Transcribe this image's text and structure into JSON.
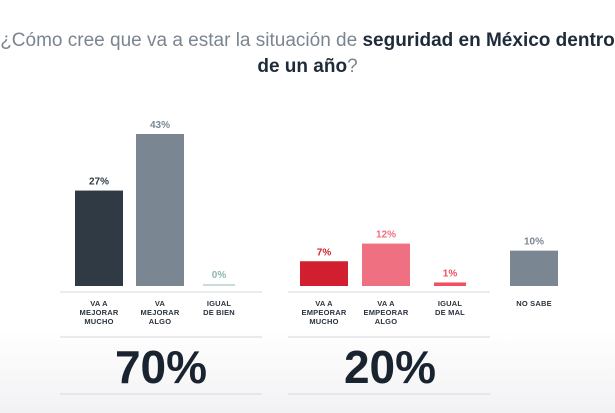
{
  "title": {
    "pre": "¿Cómo cree que va a estar la situación de ",
    "bold": "seguridad en México dentro de un año",
    "post": "?"
  },
  "colors": {
    "dark": "#2f3a44",
    "gray": "#7a8793",
    "light_teal": "#c9dcdb",
    "red": "#d21f2f",
    "pink": "#ef7080",
    "light_red": "#f05060",
    "neutral": "#7a8793"
  },
  "chart_data": {
    "type": "bar",
    "title": "¿Cómo cree que va a estar la situación de seguridad en México dentro de un año?",
    "unit": "%",
    "ylim": [
      0,
      43
    ],
    "grid": false,
    "categories": [
      "VA A MEJORAR MUCHO",
      "VA MEJORAR ALGO",
      "IGUAL DE BIEN",
      "VA A EMPEORAR MUCHO",
      "VA A EMPEORAR ALGO",
      "IGUAL DE MAL",
      "NO SABE"
    ],
    "values": [
      27,
      43,
      0,
      7,
      12,
      1,
      10
    ],
    "value_labels": [
      "27%",
      "43%",
      "0%",
      "7%",
      "12%",
      "1%",
      "10%"
    ],
    "category_lines": [
      [
        "VA A",
        "MEJORAR",
        "MUCHO"
      ],
      [
        "VA",
        "MEJORAR",
        "ALGO"
      ],
      [
        "IGUAL",
        "DE BIEN"
      ],
      [
        "VA A",
        "EMPEORAR",
        "MUCHO"
      ],
      [
        "VA A",
        "EMPEORAR",
        "ALGO"
      ],
      [
        "IGUAL",
        "DE MAL"
      ],
      [
        "NO SABE"
      ]
    ],
    "bar_colors": [
      "#2f3a44",
      "#7a8793",
      "#c9dcdb",
      "#d21f2f",
      "#ef7080",
      "#f05060",
      "#7a8793"
    ],
    "label_colors": [
      "#2f3a44",
      "#7a8793",
      "#8fb5b3",
      "#d21f2f",
      "#ef7080",
      "#f05060",
      "#7a8793"
    ],
    "groups": [
      {
        "total": "70%",
        "members": [
          0,
          1,
          2
        ]
      },
      {
        "total": "20%",
        "members": [
          3,
          4,
          5
        ]
      }
    ]
  }
}
